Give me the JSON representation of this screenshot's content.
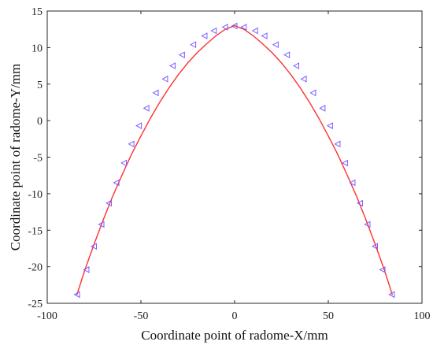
{
  "chart_data": {
    "type": "line",
    "title": "",
    "xlabel": "Coordinate point of radome-X/mm",
    "ylabel": "Coordinate point of radome-Y/mm",
    "xlim": [
      -100,
      100
    ],
    "ylim": [
      -25,
      15
    ],
    "xticks": [
      -100,
      -50,
      0,
      50,
      100
    ],
    "yticks": [
      -25,
      -20,
      -15,
      -10,
      -5,
      0,
      5,
      10,
      15
    ],
    "xtick_labels": [
      "-100",
      "-50",
      "0",
      "50",
      "100"
    ],
    "ytick_labels": [
      "-25",
      "-20",
      "-15",
      "-10",
      "-5",
      "0",
      "5",
      "10",
      "15"
    ],
    "grid": false,
    "legend": "none",
    "series": [
      {
        "style": "line",
        "color": "#ff3030",
        "x": [
          -84.2,
          -80,
          -75,
          -70,
          -65,
          -60,
          -55,
          -50,
          -45,
          -40,
          -35,
          -30,
          -25,
          -20,
          -15,
          -10,
          -5,
          0,
          5,
          10,
          15,
          20,
          25,
          30,
          35,
          40,
          45,
          50,
          55,
          60,
          65,
          70,
          75,
          80,
          84.2
        ],
        "y": [
          -23.85,
          -20.5,
          -16.9,
          -13.5,
          -10.3,
          -7.4,
          -4.6,
          -2.1,
          0.3,
          2.5,
          4.5,
          6.3,
          7.9,
          9.3,
          10.5,
          11.6,
          12.5,
          13.0,
          12.5,
          11.6,
          10.5,
          9.3,
          7.9,
          6.3,
          4.5,
          2.5,
          0.3,
          -2.1,
          -4.6,
          -7.4,
          -10.3,
          -13.5,
          -16.9,
          -20.5,
          -23.85
        ]
      },
      {
        "style": "markers",
        "marker": "triangle-left",
        "color": "#7b5cff",
        "x": [
          -84,
          -79,
          -75,
          -71,
          -67,
          -63,
          -59,
          -55,
          -51,
          -47,
          -42,
          -37,
          -33,
          -28,
          -22,
          -16,
          -11,
          -5,
          0,
          5,
          11,
          16,
          22,
          28,
          33,
          37,
          42,
          47,
          51,
          55,
          59,
          63,
          67,
          71,
          75,
          79,
          84
        ],
        "y": [
          -23.8,
          -20.4,
          -17.2,
          -14.2,
          -11.3,
          -8.5,
          -5.8,
          -3.2,
          -0.7,
          1.7,
          3.8,
          5.7,
          7.5,
          9.0,
          10.4,
          11.6,
          12.3,
          12.8,
          12.95,
          12.8,
          12.3,
          11.6,
          10.4,
          9.0,
          7.5,
          5.7,
          3.8,
          1.7,
          -0.7,
          -3.2,
          -5.8,
          -8.5,
          -11.3,
          -14.2,
          -17.2,
          -20.4,
          -23.8
        ]
      }
    ]
  }
}
